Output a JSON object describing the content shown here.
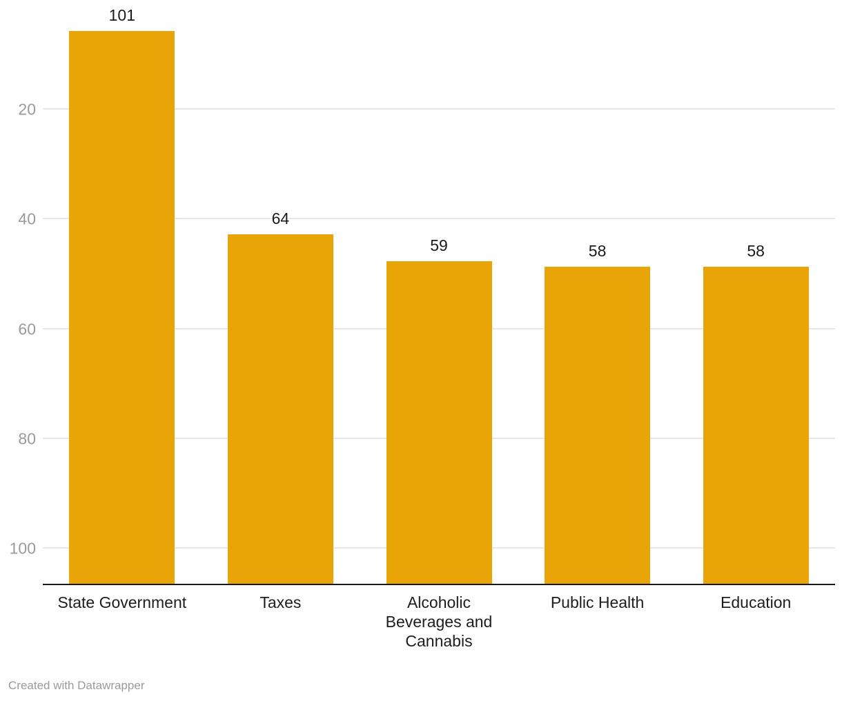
{
  "chart_data": {
    "type": "bar",
    "title": "",
    "xlabel": "",
    "ylabel": "",
    "categories": [
      "State Government",
      "Taxes",
      "Alcoholic Beverages and Cannabis",
      "Public Health",
      "Education"
    ],
    "values": [
      101,
      64,
      59,
      58,
      58
    ],
    "value_labels": [
      "101",
      "64",
      "59",
      "58",
      "58"
    ],
    "yticks": [
      20,
      40,
      60,
      80,
      100
    ],
    "ylim": [
      0,
      105
    ],
    "grid": "horizontal",
    "legend": "none",
    "bar_color": "#e9a407"
  },
  "footer": {
    "credit": "Created with Datawrapper"
  },
  "colors": {
    "background": "#ffffff",
    "bar": "#e9a407",
    "axis_line": "#161616",
    "gridline": "#e7e7e7",
    "tick_label": "#9a9a9a",
    "value_label": "#1a1a1a",
    "category_label": "#1d1d1d",
    "credit": "#9a9a9a"
  }
}
